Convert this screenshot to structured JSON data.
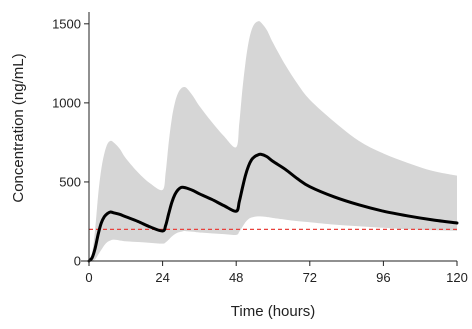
{
  "chart_data": {
    "type": "line",
    "title": "",
    "xlabel": "Time (hours)",
    "ylabel": "Concentration (ng/mL)",
    "xlim": [
      0,
      120
    ],
    "ylim": [
      0,
      1600
    ],
    "x_ticks": [
      0,
      24,
      48,
      72,
      96,
      120
    ],
    "y_ticks": [
      0,
      500,
      1000,
      1500
    ],
    "grid": false,
    "legend": "none",
    "colors": {
      "median_line": "#000000",
      "interval_band": "#d6d6d6",
      "threshold_line": "#e8413c",
      "axis": "#222222"
    },
    "series": [
      {
        "kind": "median-line",
        "x": [
          0,
          1,
          2,
          3,
          4,
          5,
          6,
          7,
          8,
          10,
          12,
          16,
          20,
          24,
          25,
          26,
          27,
          28,
          29,
          30,
          31,
          32,
          34,
          36,
          40,
          44,
          48,
          49,
          50,
          51,
          52,
          53,
          54,
          55,
          56,
          58,
          60,
          64,
          68,
          72,
          80,
          88,
          96,
          104,
          112,
          120
        ],
        "y": [
          0,
          20,
          80,
          170,
          240,
          280,
          300,
          310,
          305,
          295,
          280,
          250,
          215,
          190,
          225,
          300,
          370,
          420,
          450,
          465,
          465,
          460,
          445,
          425,
          390,
          350,
          315,
          375,
          460,
          540,
          600,
          640,
          660,
          670,
          675,
          660,
          630,
          580,
          520,
          470,
          405,
          355,
          315,
          285,
          260,
          240
        ]
      },
      {
        "kind": "interval-upper",
        "x": [
          0,
          1,
          2,
          3,
          4,
          5,
          6,
          7,
          8,
          10,
          12,
          16,
          20,
          24,
          25,
          26,
          27,
          28,
          29,
          30,
          31,
          32,
          34,
          36,
          40,
          44,
          48,
          49,
          50,
          51,
          52,
          53,
          54,
          55,
          56,
          58,
          60,
          64,
          68,
          72,
          80,
          88,
          96,
          104,
          112,
          120
        ],
        "y": [
          0,
          50,
          200,
          420,
          580,
          680,
          740,
          760,
          750,
          710,
          650,
          560,
          490,
          450,
          560,
          750,
          900,
          1000,
          1060,
          1090,
          1100,
          1090,
          1040,
          980,
          880,
          790,
          720,
          870,
          1080,
          1250,
          1380,
          1460,
          1500,
          1515,
          1510,
          1460,
          1380,
          1240,
          1120,
          1020,
          880,
          760,
          680,
          620,
          570,
          540
        ]
      },
      {
        "kind": "interval-lower",
        "x": [
          0,
          1,
          2,
          3,
          4,
          5,
          6,
          7,
          8,
          10,
          12,
          16,
          20,
          24,
          25,
          26,
          27,
          28,
          29,
          30,
          31,
          32,
          34,
          36,
          40,
          44,
          48,
          49,
          50,
          51,
          52,
          53,
          54,
          55,
          56,
          58,
          60,
          64,
          68,
          72,
          80,
          88,
          96,
          104,
          112,
          120
        ],
        "y": [
          0,
          0,
          10,
          40,
          70,
          100,
          120,
          130,
          135,
          130,
          125,
          120,
          115,
          110,
          118,
          135,
          155,
          170,
          180,
          185,
          190,
          188,
          185,
          180,
          175,
          170,
          165,
          185,
          215,
          245,
          265,
          275,
          280,
          282,
          282,
          278,
          272,
          262,
          252,
          245,
          230,
          220,
          210,
          200,
          195,
          190
        ]
      },
      {
        "kind": "threshold-line",
        "x": [
          0,
          120
        ],
        "y": [
          200,
          200
        ]
      }
    ]
  }
}
